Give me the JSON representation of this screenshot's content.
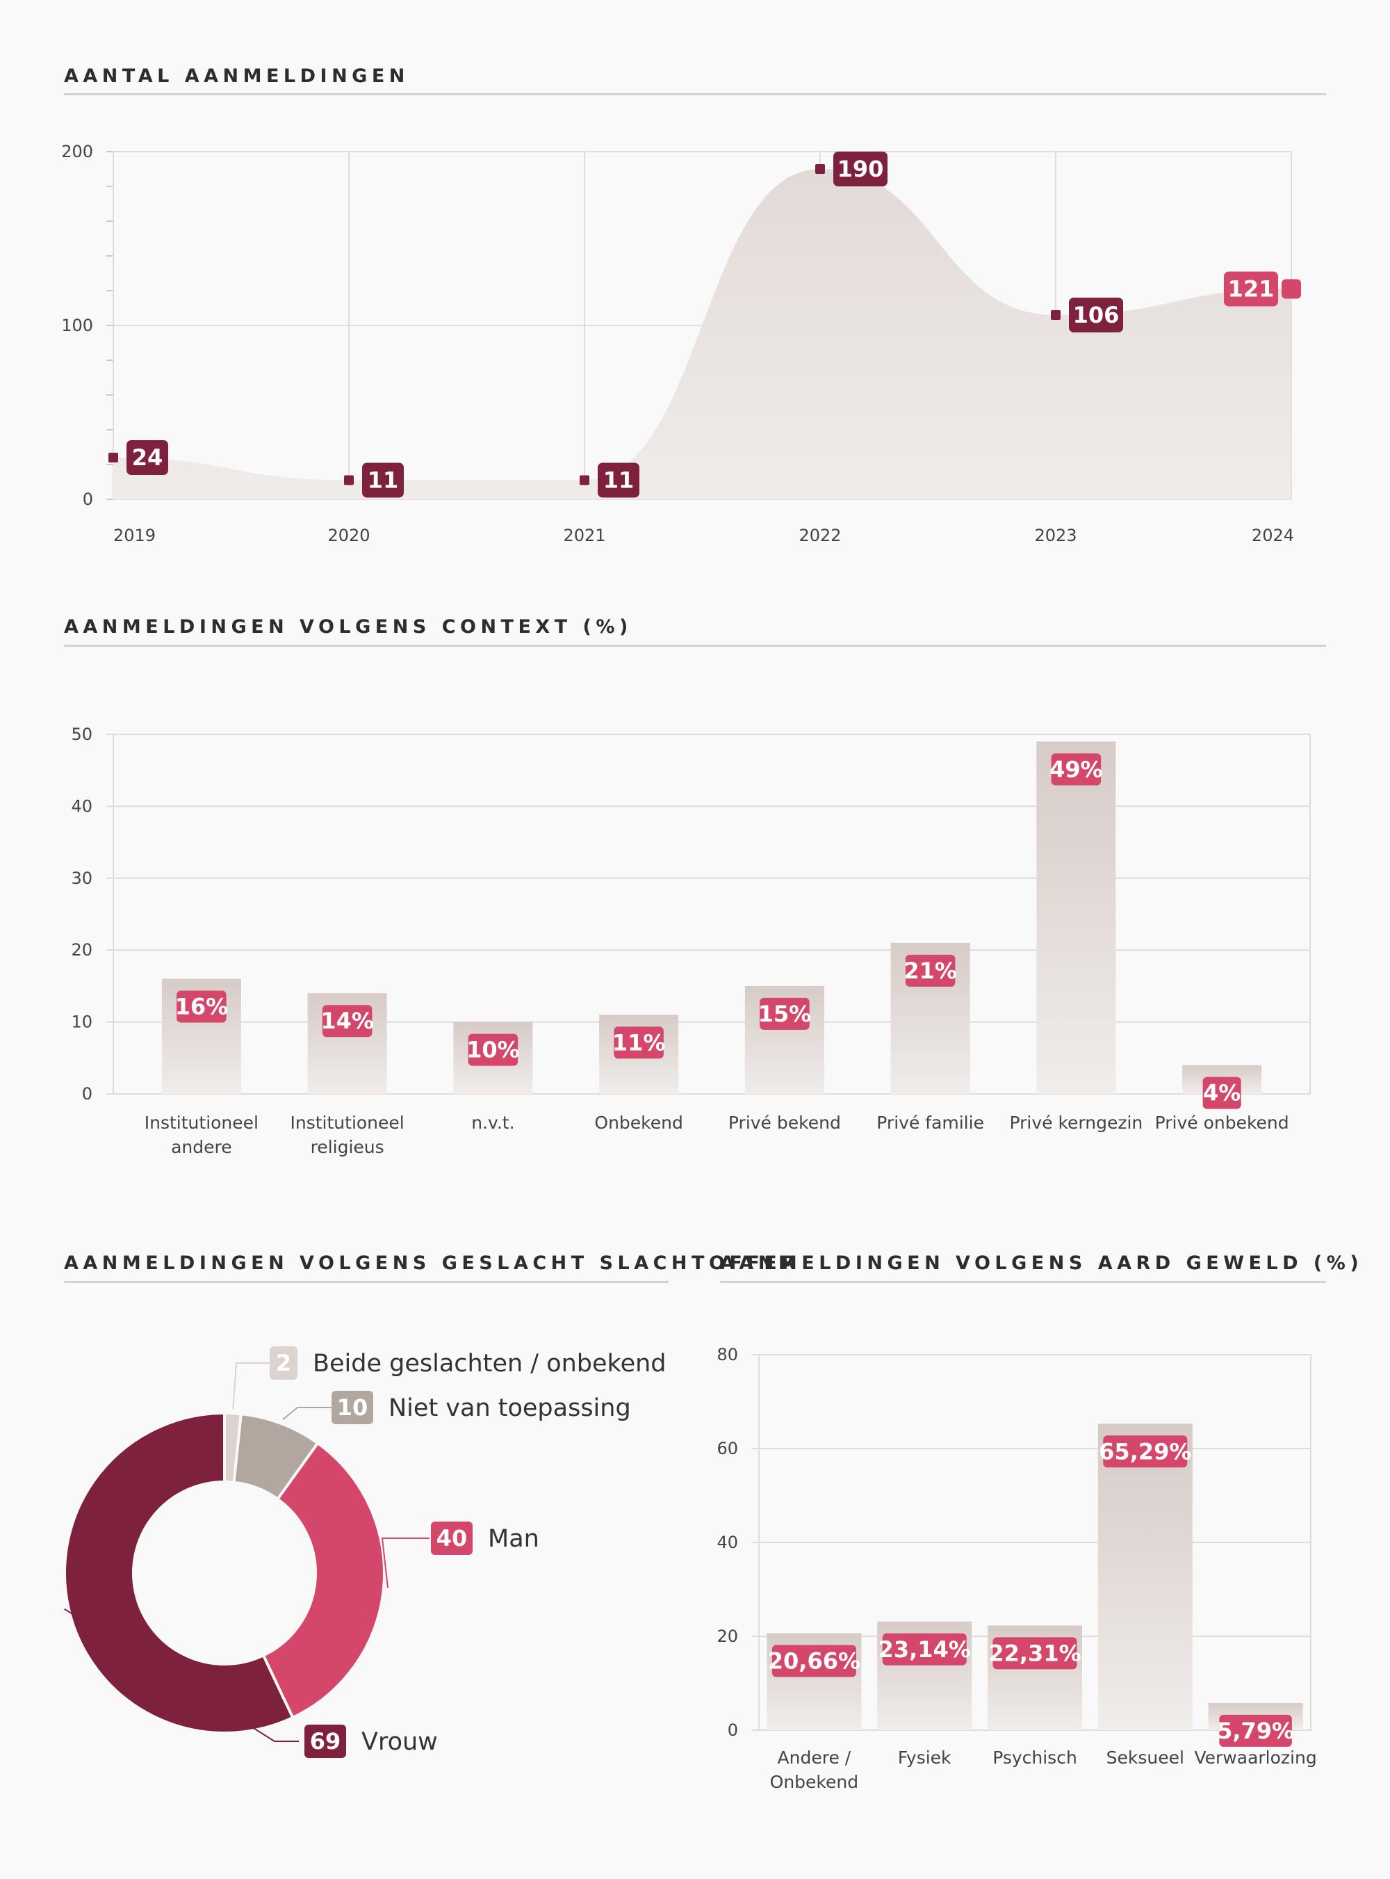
{
  "colors": {
    "dark": "#7e213c",
    "pink": "#d4466a",
    "taupe": "#b2a79f",
    "light": "#dcd2cf",
    "area": "#e6e0dd",
    "grid": "#e0dcdc"
  },
  "line_chart": {
    "heading": "AANTAL AANMELDINGEN",
    "chart_data": {
      "type": "area",
      "x": [
        "2019",
        "2020",
        "2021",
        "2022",
        "2023",
        "2024"
      ],
      "values": [
        24,
        11,
        11,
        190,
        106,
        121
      ],
      "yticks": [
        0,
        100,
        200
      ],
      "ylim": [
        0,
        200
      ]
    }
  },
  "context_chart": {
    "heading": "AANMELDINGEN VOLGENS CONTEXT (%)",
    "chart_data": {
      "type": "bar",
      "categories": [
        [
          "Institutioneel",
          "andere"
        ],
        [
          "Institutioneel",
          "religieus"
        ],
        [
          "n.v.t."
        ],
        [
          "Onbekend"
        ],
        [
          "Privé bekend"
        ],
        [
          "Privé familie"
        ],
        [
          "Privé kerngezin"
        ],
        [
          "Privé onbekend"
        ]
      ],
      "values": [
        16,
        14,
        10,
        11,
        15,
        21,
        49,
        4
      ],
      "labels": [
        "16%",
        "14%",
        "10%",
        "11%",
        "15%",
        "21%",
        "49%",
        "4%"
      ],
      "yticks": [
        0,
        10,
        20,
        30,
        40,
        50
      ],
      "ylim": [
        0,
        50
      ]
    }
  },
  "gender_chart": {
    "heading": "AANMELDINGEN VOLGENS GESLACHT SLACHTOFFER",
    "chart_data": {
      "type": "pie",
      "slices": [
        {
          "name": "Beide geslachten / onbekend",
          "value": 2,
          "label": "2",
          "color": "#dcd2cf"
        },
        {
          "name": "Niet van toepassing",
          "value": 10,
          "label": "10",
          "color": "#b2a79f"
        },
        {
          "name": "Man",
          "value": 40,
          "label": "40",
          "color": "#d4466a"
        },
        {
          "name": "Vrouw",
          "value": 69,
          "label": "69",
          "color": "#7e213c"
        }
      ]
    }
  },
  "violence_chart": {
    "heading": "AANMELDINGEN VOLGENS AARD GEWELD (%)",
    "chart_data": {
      "type": "bar",
      "categories": [
        [
          "Andere /",
          "Onbekend"
        ],
        [
          "Fysiek"
        ],
        [
          "Psychisch"
        ],
        [
          "Seksueel"
        ],
        [
          "Verwaarlozing"
        ]
      ],
      "values": [
        20.66,
        23.14,
        22.31,
        65.29,
        5.79
      ],
      "labels": [
        "20,66%",
        "23,14%",
        "22,31%",
        "65,29%",
        "5,79%"
      ],
      "yticks": [
        0,
        20,
        40,
        60,
        80
      ],
      "ylim": [
        0,
        80
      ]
    }
  }
}
